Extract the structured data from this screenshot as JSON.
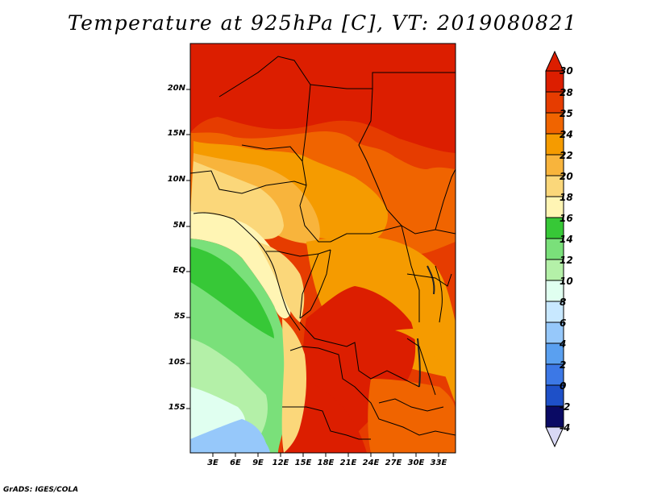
{
  "title": "Temperature at 925hPa [C], VT: 2019080821",
  "footer": "GrADS: IGES/COLA",
  "map": {
    "lat_labels": [
      "20N",
      "15N",
      "10N",
      "5N",
      "EQ",
      "5S",
      "10S",
      "15S"
    ],
    "lon_labels": [
      "3E",
      "6E",
      "9E",
      "12E",
      "15E",
      "18E",
      "21E",
      "24E",
      "27E",
      "30E",
      "33E"
    ]
  },
  "colorbar": {
    "labels": [
      "30",
      "28",
      "25",
      "24",
      "22",
      "20",
      "18",
      "16",
      "14",
      "12",
      "10",
      "8",
      "6",
      "4",
      "2",
      "0",
      "-2",
      "-4"
    ],
    "colors": [
      "#dc1e00",
      "#e63c00",
      "#f06400",
      "#f59b00",
      "#f8b43c",
      "#fbd77a",
      "#fff5b4",
      "#37c837",
      "#7ae07a",
      "#b4f0a8",
      "#e0fff0",
      "#c8e8ff",
      "#96c8fa",
      "#5aa0f0",
      "#3c78e6",
      "#1e50c8",
      "#1432a0",
      "#0a0a64"
    ],
    "upper_arrow_color": "#dc1e00",
    "lower_arrow_color": "#d8d8f5"
  }
}
